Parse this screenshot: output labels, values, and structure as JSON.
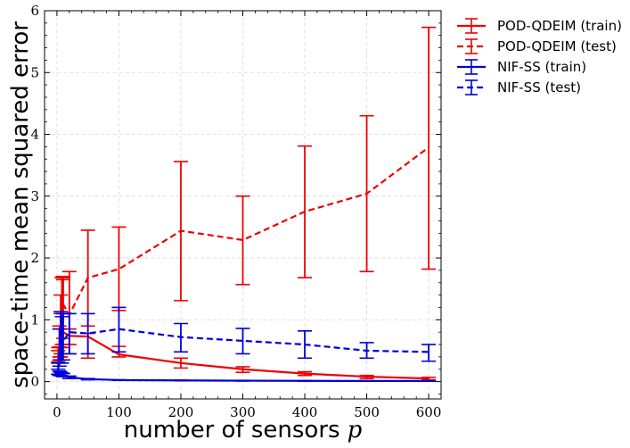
{
  "chart_data": {
    "type": "line",
    "xlabel": "number of sensors",
    "xlabel_var": "p",
    "ylabel": "space-time mean squared error",
    "xlim": [
      -20,
      620
    ],
    "ylim": [
      -0.28,
      6
    ],
    "xticks": [
      0,
      100,
      200,
      300,
      400,
      500,
      600
    ],
    "yticks": [
      0,
      1,
      2,
      3,
      4,
      5,
      6
    ],
    "grid": true,
    "legend_position": "outside-top-right",
    "series": [
      {
        "name": "POD-QDEIM (train)",
        "color": "#ee0000",
        "linestyle": "solid",
        "points": [
          {
            "x": 2,
            "y": 0.4,
            "err": [
              0.32,
              0.5
            ]
          },
          {
            "x": 4,
            "y": 0.45,
            "err": [
              0.35,
              0.56
            ]
          },
          {
            "x": 6,
            "y": 0.75,
            "err": [
              0.4,
              1.1
            ]
          },
          {
            "x": 8,
            "y": 0.8,
            "err": [
              0.6,
              1.69
            ]
          },
          {
            "x": 10,
            "y": 0.8,
            "err": [
              0.6,
              1.7
            ]
          },
          {
            "x": 20,
            "y": 0.74,
            "err": [
              0.6,
              0.85
            ]
          },
          {
            "x": 50,
            "y": 0.73,
            "err": [
              0.38,
              0.78
            ]
          },
          {
            "x": 100,
            "y": 0.44,
            "err": [
              0.4,
              0.57
            ]
          },
          {
            "x": 200,
            "y": 0.3,
            "err": [
              0.22,
              0.38
            ]
          },
          {
            "x": 300,
            "y": 0.2,
            "err": [
              0.15,
              0.24
            ]
          },
          {
            "x": 400,
            "y": 0.13,
            "err": [
              0.1,
              0.16
            ]
          },
          {
            "x": 500,
            "y": 0.08,
            "err": [
              0.05,
              0.1
            ]
          },
          {
            "x": 600,
            "y": 0.05,
            "err": [
              0.03,
              0.07
            ]
          }
        ]
      },
      {
        "name": "POD-QDEIM (test)",
        "color": "#ee0000",
        "linestyle": "dashed",
        "points": [
          {
            "x": 2,
            "y": 0.45,
            "err": [
              0.3,
              0.55
            ]
          },
          {
            "x": 4,
            "y": 0.6,
            "err": [
              0.4,
              0.9
            ]
          },
          {
            "x": 6,
            "y": 0.95,
            "err": [
              0.45,
              1.4
            ]
          },
          {
            "x": 8,
            "y": 1.2,
            "err": [
              0.55,
              1.68
            ]
          },
          {
            "x": 10,
            "y": 1.25,
            "err": [
              0.7,
              1.65
            ]
          },
          {
            "x": 20,
            "y": 1.08,
            "err": [
              0.45,
              1.78
            ]
          },
          {
            "x": 50,
            "y": 1.68,
            "err": [
              0.9,
              2.45
            ]
          },
          {
            "x": 100,
            "y": 1.82,
            "err": [
              1.15,
              2.5
            ]
          },
          {
            "x": 200,
            "y": 2.44,
            "err": [
              1.31,
              3.56
            ]
          },
          {
            "x": 300,
            "y": 2.29,
            "err": [
              1.57,
              3.0
            ]
          },
          {
            "x": 400,
            "y": 2.75,
            "err": [
              1.68,
              3.81
            ]
          },
          {
            "x": 500,
            "y": 3.04,
            "err": [
              1.78,
              4.3
            ]
          },
          {
            "x": 600,
            "y": 3.79,
            "err": [
              1.82,
              5.73
            ]
          }
        ]
      },
      {
        "name": "NIF-SS (train)",
        "color": "#0000dd",
        "linestyle": "solid",
        "points": [
          {
            "x": 2,
            "y": 0.15,
            "err": [
              0.12,
              0.2
            ]
          },
          {
            "x": 4,
            "y": 0.13,
            "err": [
              0.1,
              0.17
            ]
          },
          {
            "x": 6,
            "y": 0.12,
            "err": [
              0.1,
              0.15
            ]
          },
          {
            "x": 8,
            "y": 0.11,
            "err": [
              0.09,
              0.14
            ]
          },
          {
            "x": 10,
            "y": 0.1,
            "err": [
              0.08,
              0.13
            ]
          },
          {
            "x": 20,
            "y": 0.07,
            "err": [
              0.05,
              0.09
            ]
          },
          {
            "x": 50,
            "y": 0.04,
            "err": [
              0.03,
              0.05
            ]
          },
          {
            "x": 100,
            "y": 0.025,
            "err": [
              0.02,
              0.03
            ]
          },
          {
            "x": 200,
            "y": 0.02,
            "err": [
              0.015,
              0.025
            ]
          },
          {
            "x": 300,
            "y": 0.015,
            "err": [
              0.01,
              0.02
            ]
          },
          {
            "x": 400,
            "y": 0.012,
            "err": [
              0.008,
              0.016
            ]
          },
          {
            "x": 500,
            "y": 0.01,
            "err": [
              0.006,
              0.014
            ]
          },
          {
            "x": 600,
            "y": 0.01,
            "err": [
              0.006,
              0.014
            ]
          }
        ]
      },
      {
        "name": "NIF-SS (test)",
        "color": "#0000dd",
        "linestyle": "dashed",
        "points": [
          {
            "x": 2,
            "y": 0.2,
            "err": [
              0.12,
              0.3
            ]
          },
          {
            "x": 4,
            "y": 0.5,
            "err": [
              0.25,
              0.85
            ]
          },
          {
            "x": 6,
            "y": 0.75,
            "err": [
              0.35,
              1.13
            ]
          },
          {
            "x": 8,
            "y": 0.6,
            "err": [
              0.3,
              1.05
            ]
          },
          {
            "x": 10,
            "y": 0.65,
            "err": [
              0.35,
              1.1
            ]
          },
          {
            "x": 20,
            "y": 0.8,
            "err": [
              0.45,
              1.1
            ]
          },
          {
            "x": 50,
            "y": 0.78,
            "err": [
              0.45,
              1.1
            ]
          },
          {
            "x": 100,
            "y": 0.85,
            "err": [
              0.48,
              1.2
            ]
          },
          {
            "x": 200,
            "y": 0.72,
            "err": [
              0.48,
              0.94
            ]
          },
          {
            "x": 300,
            "y": 0.66,
            "err": [
              0.45,
              0.86
            ]
          },
          {
            "x": 400,
            "y": 0.6,
            "err": [
              0.38,
              0.82
            ]
          },
          {
            "x": 500,
            "y": 0.5,
            "err": [
              0.38,
              0.63
            ]
          },
          {
            "x": 600,
            "y": 0.48,
            "err": [
              0.33,
              0.6
            ]
          }
        ]
      }
    ]
  }
}
